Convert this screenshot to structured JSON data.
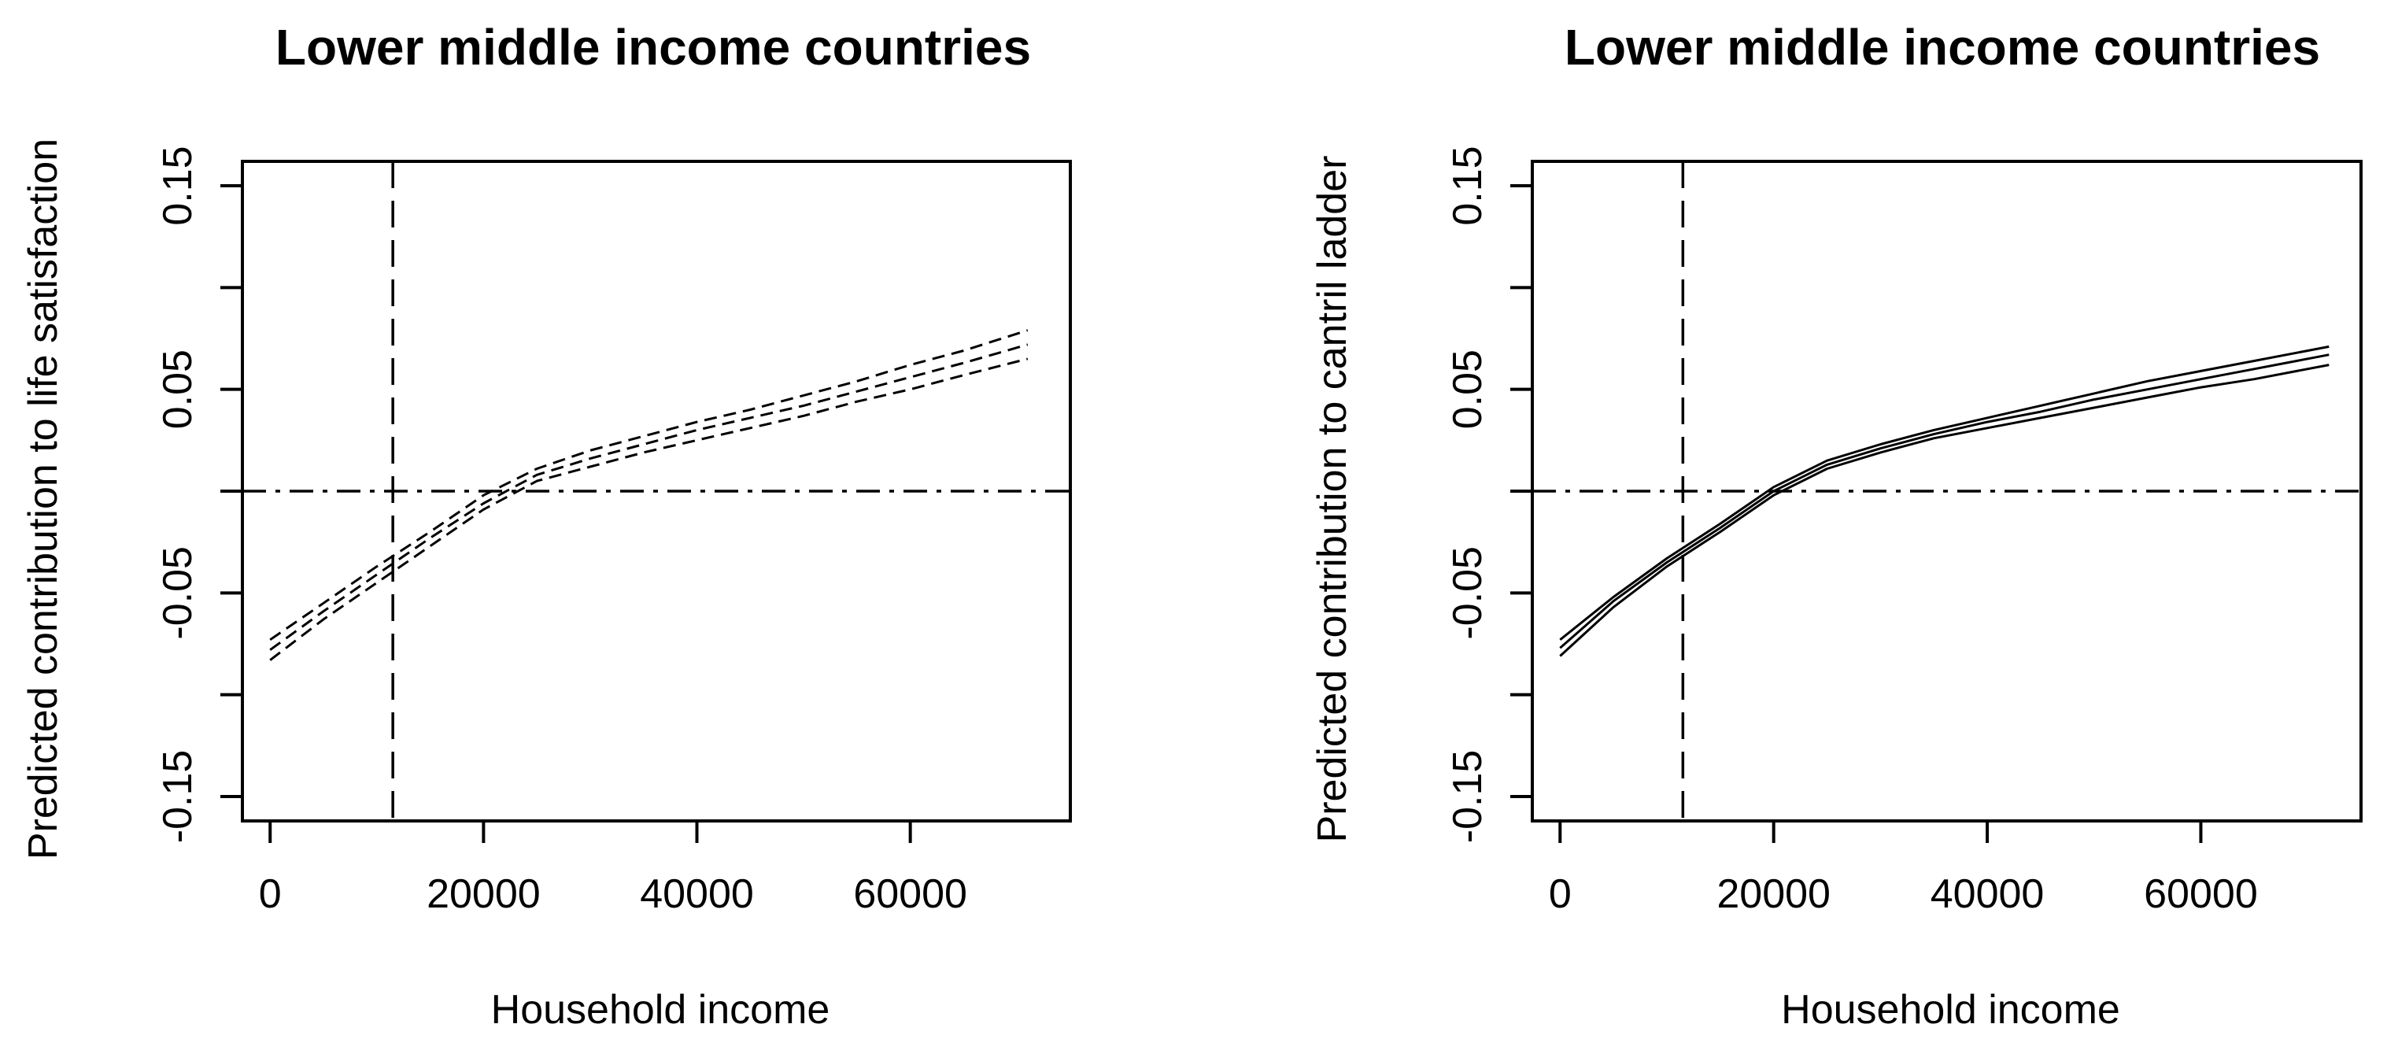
{
  "chart_data": [
    {
      "type": "line",
      "title": "Lower middle income countries",
      "xlabel": "Household income",
      "ylabel": "Predicted contribution to life satisfaction",
      "xlim": [
        -2600,
        75000
      ],
      "ylim": [
        -0.162,
        0.162
      ],
      "x_ticks": [
        0,
        20000,
        40000,
        60000
      ],
      "x_tick_labels": [
        "0",
        "20000",
        "40000",
        "60000"
      ],
      "y_ticks": [
        -0.15,
        -0.1,
        -0.05,
        0.0,
        0.05,
        0.1,
        0.15
      ],
      "y_tick_labels": [
        "-0.15",
        "",
        "-0.05",
        "",
        "0.05",
        "",
        "0.15"
      ],
      "reference_lines": {
        "vertical_x": 11500,
        "horizontal_y": 0
      },
      "line_style": "dashed",
      "x": [
        0,
        5000,
        10000,
        15000,
        20000,
        25000,
        30000,
        35000,
        40000,
        45000,
        50000,
        55000,
        60000,
        65000,
        71000
      ],
      "series": [
        {
          "values": [
            -0.073,
            -0.055,
            -0.037,
            -0.02,
            -0.002,
            0.011,
            0.02,
            0.027,
            0.034,
            0.04,
            0.047,
            0.054,
            0.062,
            0.069,
            0.079
          ]
        },
        {
          "values": [
            -0.078,
            -0.059,
            -0.041,
            -0.023,
            -0.006,
            0.008,
            0.016,
            0.023,
            0.03,
            0.036,
            0.042,
            0.049,
            0.056,
            0.063,
            0.072
          ]
        },
        {
          "values": [
            -0.083,
            -0.063,
            -0.045,
            -0.027,
            -0.009,
            0.005,
            0.012,
            0.019,
            0.025,
            0.031,
            0.037,
            0.044,
            0.05,
            0.057,
            0.065
          ]
        }
      ]
    },
    {
      "type": "line",
      "title": "Lower middle income countries",
      "xlabel": "Household income",
      "ylabel": "Predicted contribution to cantril ladder",
      "xlim": [
        -2600,
        75000
      ],
      "ylim": [
        -0.162,
        0.162
      ],
      "x_ticks": [
        0,
        20000,
        40000,
        60000
      ],
      "x_tick_labels": [
        "0",
        "20000",
        "40000",
        "60000"
      ],
      "y_ticks": [
        -0.15,
        -0.1,
        -0.05,
        0.0,
        0.05,
        0.1,
        0.15
      ],
      "y_tick_labels": [
        "-0.15",
        "",
        "-0.05",
        "",
        "0.05",
        "",
        "0.15"
      ],
      "reference_lines": {
        "vertical_x": 11500,
        "horizontal_y": 0
      },
      "line_style": "solid",
      "x": [
        0,
        5000,
        10000,
        15000,
        20000,
        25000,
        30000,
        35000,
        40000,
        45000,
        50000,
        55000,
        60000,
        65000,
        72000
      ],
      "series": [
        {
          "values": [
            -0.073,
            -0.052,
            -0.033,
            -0.016,
            0.002,
            0.015,
            0.023,
            0.03,
            0.036,
            0.042,
            0.048,
            0.054,
            0.059,
            0.064,
            0.071
          ]
        },
        {
          "values": [
            -0.077,
            -0.054,
            -0.035,
            -0.018,
            0.0,
            0.013,
            0.021,
            0.028,
            0.034,
            0.039,
            0.045,
            0.05,
            0.055,
            0.06,
            0.067
          ]
        },
        {
          "values": [
            -0.081,
            -0.057,
            -0.037,
            -0.02,
            -0.002,
            0.011,
            0.019,
            0.026,
            0.031,
            0.036,
            0.041,
            0.046,
            0.051,
            0.055,
            0.062
          ]
        }
      ]
    }
  ]
}
